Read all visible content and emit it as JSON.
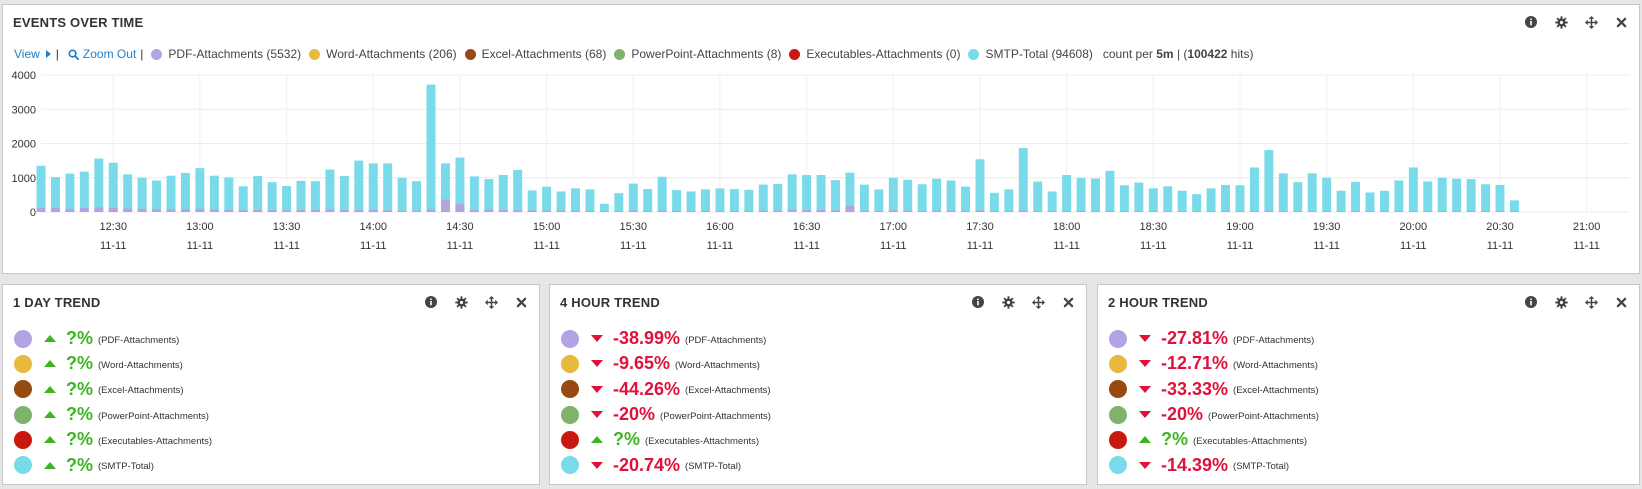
{
  "events_panel": {
    "title": "EVENTS OVER TIME",
    "view_label": "View",
    "zoom_label": "Zoom Out",
    "count_prefix": "count per",
    "interval": "5m",
    "total_hits": "100422",
    "hits_suffix": "hits)",
    "paren_open": "| (",
    "legend": [
      {
        "label": "PDF-Attachments (5532)",
        "color": "#b3a3e3"
      },
      {
        "label": "Word-Attachments (206)",
        "color": "#e9b93d"
      },
      {
        "label": "Excel-Attachments (68)",
        "color": "#964a10"
      },
      {
        "label": "PowerPoint-Attachments (8)",
        "color": "#7fb26a"
      },
      {
        "label": "Executables-Attachments (0)",
        "color": "#c8180f"
      },
      {
        "label": "SMTP-Total (94608)",
        "color": "#79dbea"
      }
    ]
  },
  "chart_data": {
    "type": "bar",
    "stacked": true,
    "interval": "5m",
    "ylim": [
      0,
      4000
    ],
    "yticks": [
      "0",
      "1000",
      "2000",
      "3000",
      "4000"
    ],
    "x_ticks": [
      {
        "time": "12:30",
        "date": "11-11"
      },
      {
        "time": "13:00",
        "date": "11-11"
      },
      {
        "time": "13:30",
        "date": "11-11"
      },
      {
        "time": "14:00",
        "date": "11-11"
      },
      {
        "time": "14:30",
        "date": "11-11"
      },
      {
        "time": "15:00",
        "date": "11-11"
      },
      {
        "time": "15:30",
        "date": "11-11"
      },
      {
        "time": "16:00",
        "date": "11-11"
      },
      {
        "time": "16:30",
        "date": "11-11"
      },
      {
        "time": "17:00",
        "date": "11-11"
      },
      {
        "time": "17:30",
        "date": "11-11"
      },
      {
        "time": "18:00",
        "date": "11-11"
      },
      {
        "time": "18:30",
        "date": "11-11"
      },
      {
        "time": "19:00",
        "date": "11-11"
      },
      {
        "time": "19:30",
        "date": "11-11"
      },
      {
        "time": "20:00",
        "date": "11-11"
      },
      {
        "time": "20:30",
        "date": "11-11"
      },
      {
        "time": "21:00",
        "date": "11-11"
      }
    ],
    "x_start": "12:05",
    "x_end": "21:15",
    "first_bar": "12:05",
    "series": [
      {
        "name": "SMTP-Total",
        "color": "#79dbea",
        "values": [
          1350,
          1020,
          1120,
          1180,
          1560,
          1440,
          1100,
          1000,
          920,
          1060,
          1140,
          1280,
          1060,
          1010,
          750,
          1050,
          870,
          760,
          910,
          900,
          1240,
          1050,
          1500,
          1420,
          1420,
          1000,
          900,
          3720,
          1420,
          1590,
          1040,
          960,
          1080,
          1230,
          630,
          740,
          600,
          690,
          660,
          240,
          550,
          830,
          670,
          1030,
          640,
          600,
          660,
          690,
          670,
          650,
          800,
          820,
          1100,
          1080,
          1080,
          930,
          1150,
          800,
          660,
          1000,
          940,
          810,
          970,
          920,
          740,
          1540,
          560,
          660,
          1870,
          890,
          600,
          1080,
          990,
          980,
          1200,
          780,
          860,
          690,
          750,
          620,
          520,
          690,
          790,
          780,
          1300,
          1810,
          1130,
          870,
          1130,
          1000,
          620,
          880,
          570,
          620,
          920,
          1300,
          890,
          1000,
          970,
          960,
          810,
          790,
          340
        ]
      },
      {
        "name": "PDF-Attachments",
        "color": "#b3a3e3",
        "values": [
          120,
          110,
          90,
          120,
          130,
          120,
          100,
          90,
          80,
          70,
          80,
          90,
          70,
          60,
          50,
          60,
          60,
          50,
          60,
          60,
          70,
          60,
          60,
          60,
          50,
          40,
          40,
          70,
          360,
          230,
          60,
          70,
          60,
          50,
          50,
          40,
          40,
          30,
          30,
          20,
          30,
          40,
          30,
          40,
          30,
          30,
          30,
          30,
          30,
          30,
          40,
          40,
          70,
          60,
          60,
          50,
          180,
          40,
          30,
          50,
          40,
          30,
          40,
          40,
          30,
          50,
          20,
          20,
          40,
          20,
          20,
          30,
          30,
          20,
          30,
          20,
          20,
          20,
          20,
          20,
          20,
          20,
          20,
          20,
          20,
          40,
          20,
          20,
          20,
          20,
          20,
          20,
          20,
          20,
          20,
          20,
          20,
          20,
          20,
          20,
          20,
          20,
          20
        ]
      }
    ]
  },
  "trend_labels": {
    "pdf": "(PDF-Attachments)",
    "word": "(Word-Attachments)",
    "excel": "(Excel-Attachments)",
    "ppt": "(PowerPoint-Attachments)",
    "exe": "(Executables-Attachments)",
    "smtp": "(SMTP-Total)"
  },
  "trend_panels": [
    {
      "title": "1 DAY TREND",
      "rows": [
        {
          "color": "#b3a3e3",
          "dir": "up",
          "value": "?%",
          "label": "(PDF-Attachments)"
        },
        {
          "color": "#e9b93d",
          "dir": "up",
          "value": "?%",
          "label": "(Word-Attachments)"
        },
        {
          "color": "#964a10",
          "dir": "up",
          "value": "?%",
          "label": "(Excel-Attachments)"
        },
        {
          "color": "#7fb26a",
          "dir": "up",
          "value": "?%",
          "label": "(PowerPoint-Attachments)"
        },
        {
          "color": "#c8180f",
          "dir": "up",
          "value": "?%",
          "label": "(Executables-Attachments)"
        },
        {
          "color": "#79dbea",
          "dir": "up",
          "value": "?%",
          "label": "(SMTP-Total)"
        }
      ]
    },
    {
      "title": "4 HOUR TREND",
      "rows": [
        {
          "color": "#b3a3e3",
          "dir": "down",
          "value": "-38.99%",
          "label": "(PDF-Attachments)"
        },
        {
          "color": "#e9b93d",
          "dir": "down",
          "value": "-9.65%",
          "label": "(Word-Attachments)"
        },
        {
          "color": "#964a10",
          "dir": "down",
          "value": "-44.26%",
          "label": "(Excel-Attachments)"
        },
        {
          "color": "#7fb26a",
          "dir": "down",
          "value": "-20%",
          "label": "(PowerPoint-Attachments)"
        },
        {
          "color": "#c8180f",
          "dir": "up",
          "value": "?%",
          "label": "(Executables-Attachments)"
        },
        {
          "color": "#79dbea",
          "dir": "down",
          "value": "-20.74%",
          "label": "(SMTP-Total)"
        }
      ]
    },
    {
      "title": "2 HOUR TREND",
      "rows": [
        {
          "color": "#b3a3e3",
          "dir": "down",
          "value": "-27.81%",
          "label": "(PDF-Attachments)"
        },
        {
          "color": "#e9b93d",
          "dir": "down",
          "value": "-12.71%",
          "label": "(Word-Attachments)"
        },
        {
          "color": "#964a10",
          "dir": "down",
          "value": "-33.33%",
          "label": "(Excel-Attachments)"
        },
        {
          "color": "#7fb26a",
          "dir": "down",
          "value": "-20%",
          "label": "(PowerPoint-Attachments)"
        },
        {
          "color": "#c8180f",
          "dir": "up",
          "value": "?%",
          "label": "(Executables-Attachments)"
        },
        {
          "color": "#79dbea",
          "dir": "down",
          "value": "-14.39%",
          "label": "(SMTP-Total)"
        }
      ]
    }
  ],
  "colors": {
    "up": "#3cb521",
    "down": "#e0123c",
    "link": "#1f7fc6"
  },
  "icons": [
    "info-icon",
    "gear-icon",
    "move-icon",
    "close-icon"
  ]
}
